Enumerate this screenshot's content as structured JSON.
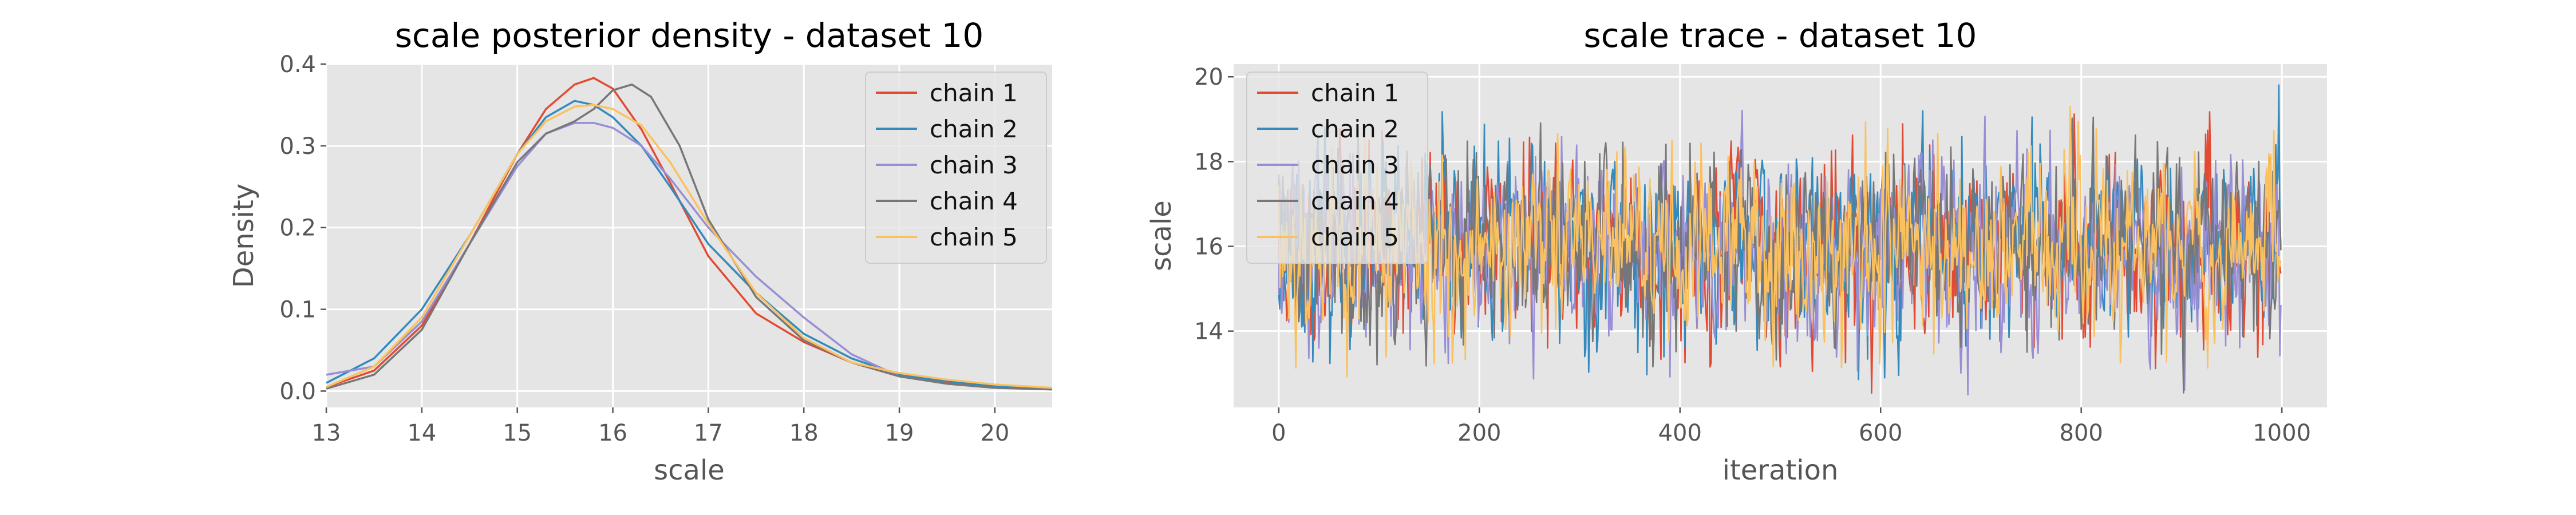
{
  "figure": {
    "background": "#ffffff",
    "panel_background": "#e5e5e5",
    "grid_color": "#ffffff",
    "tick_color": "#555555",
    "title_color": "#000000"
  },
  "chart_data": [
    {
      "type": "line",
      "title": "scale posterior density - dataset 10",
      "xlabel": "scale",
      "ylabel": "Density",
      "xlim": [
        13.0,
        20.6
      ],
      "ylim": [
        -0.02,
        0.4
      ],
      "xticks": [
        13,
        14,
        15,
        16,
        17,
        18,
        19,
        20
      ],
      "xtick_labels": [
        "13",
        "14",
        "15",
        "16",
        "17",
        "18",
        "19",
        "20"
      ],
      "yticks": [
        0.0,
        0.1,
        0.2,
        0.3,
        0.4
      ],
      "ytick_labels": [
        "0.0",
        "0.1",
        "0.2",
        "0.3",
        "0.4"
      ],
      "grid": true,
      "legend_position": "top-right",
      "series": [
        {
          "name": "chain 1",
          "color": "#E24A33",
          "x": [
            13.0,
            13.5,
            14.0,
            14.5,
            15.0,
            15.3,
            15.6,
            15.8,
            16.0,
            16.3,
            16.6,
            17.0,
            17.5,
            18.0,
            18.5,
            19.0,
            19.5,
            20.0,
            20.6
          ],
          "y": [
            0.005,
            0.025,
            0.08,
            0.18,
            0.29,
            0.345,
            0.375,
            0.383,
            0.37,
            0.32,
            0.255,
            0.165,
            0.095,
            0.06,
            0.035,
            0.018,
            0.01,
            0.005,
            0.003
          ]
        },
        {
          "name": "chain 2",
          "color": "#348ABD",
          "x": [
            13.0,
            13.5,
            14.0,
            14.5,
            15.0,
            15.3,
            15.6,
            15.8,
            16.0,
            16.3,
            16.6,
            17.0,
            17.5,
            18.0,
            18.5,
            19.0,
            19.5,
            20.0,
            20.6
          ],
          "y": [
            0.01,
            0.04,
            0.1,
            0.19,
            0.29,
            0.335,
            0.355,
            0.35,
            0.335,
            0.3,
            0.25,
            0.18,
            0.12,
            0.07,
            0.04,
            0.02,
            0.012,
            0.006,
            0.003
          ]
        },
        {
          "name": "chain 3",
          "color": "#988ED5",
          "x": [
            13.0,
            13.5,
            14.0,
            14.5,
            15.0,
            15.3,
            15.6,
            15.8,
            16.0,
            16.3,
            16.6,
            17.0,
            17.5,
            18.0,
            18.5,
            19.0,
            19.5,
            20.0,
            20.6
          ],
          "y": [
            0.02,
            0.03,
            0.085,
            0.18,
            0.275,
            0.315,
            0.328,
            0.328,
            0.322,
            0.3,
            0.26,
            0.2,
            0.14,
            0.09,
            0.045,
            0.018,
            0.009,
            0.004,
            0.002
          ]
        },
        {
          "name": "chain 4",
          "color": "#777777",
          "x": [
            13.0,
            13.5,
            14.0,
            14.5,
            15.0,
            15.3,
            15.6,
            15.8,
            16.0,
            16.2,
            16.4,
            16.7,
            17.0,
            17.5,
            18.0,
            18.5,
            19.0,
            19.5,
            20.0,
            20.6
          ],
          "y": [
            0.003,
            0.02,
            0.075,
            0.18,
            0.28,
            0.315,
            0.33,
            0.345,
            0.368,
            0.375,
            0.36,
            0.3,
            0.21,
            0.115,
            0.062,
            0.035,
            0.018,
            0.009,
            0.004,
            0.002
          ]
        },
        {
          "name": "chain 5",
          "color": "#FBC15E",
          "x": [
            13.0,
            13.5,
            14.0,
            14.5,
            15.0,
            15.3,
            15.6,
            15.8,
            16.0,
            16.3,
            16.6,
            17.0,
            17.5,
            18.0,
            18.5,
            19.0,
            19.5,
            20.0,
            20.6
          ],
          "y": [
            0.005,
            0.03,
            0.09,
            0.19,
            0.29,
            0.33,
            0.348,
            0.35,
            0.345,
            0.325,
            0.28,
            0.205,
            0.12,
            0.065,
            0.035,
            0.022,
            0.014,
            0.008,
            0.004
          ]
        }
      ]
    },
    {
      "type": "line",
      "title": "scale trace - dataset 10",
      "xlabel": "iteration",
      "ylabel": "scale",
      "xlim": [
        -45,
        1045
      ],
      "ylim": [
        12.2,
        20.3
      ],
      "xticks": [
        0,
        200,
        400,
        600,
        800,
        1000
      ],
      "xtick_labels": [
        "0",
        "200",
        "400",
        "600",
        "800",
        "1000"
      ],
      "yticks": [
        14,
        16,
        18,
        20
      ],
      "ytick_labels": [
        "14",
        "16",
        "18",
        "20"
      ],
      "grid": true,
      "legend_position": "top-left",
      "n_iterations": 1000,
      "series": [
        {
          "name": "chain 1",
          "color": "#E24A33",
          "mean": 16.0,
          "sd": 1.1,
          "seed": 11
        },
        {
          "name": "chain 2",
          "color": "#348ABD",
          "mean": 16.0,
          "sd": 1.1,
          "seed": 23
        },
        {
          "name": "chain 3",
          "color": "#988ED5",
          "mean": 16.0,
          "sd": 1.1,
          "seed": 37
        },
        {
          "name": "chain 4",
          "color": "#777777",
          "mean": 16.0,
          "sd": 1.1,
          "seed": 41
        },
        {
          "name": "chain 5",
          "color": "#FBC15E",
          "mean": 16.0,
          "sd": 1.1,
          "seed": 53
        }
      ]
    }
  ]
}
